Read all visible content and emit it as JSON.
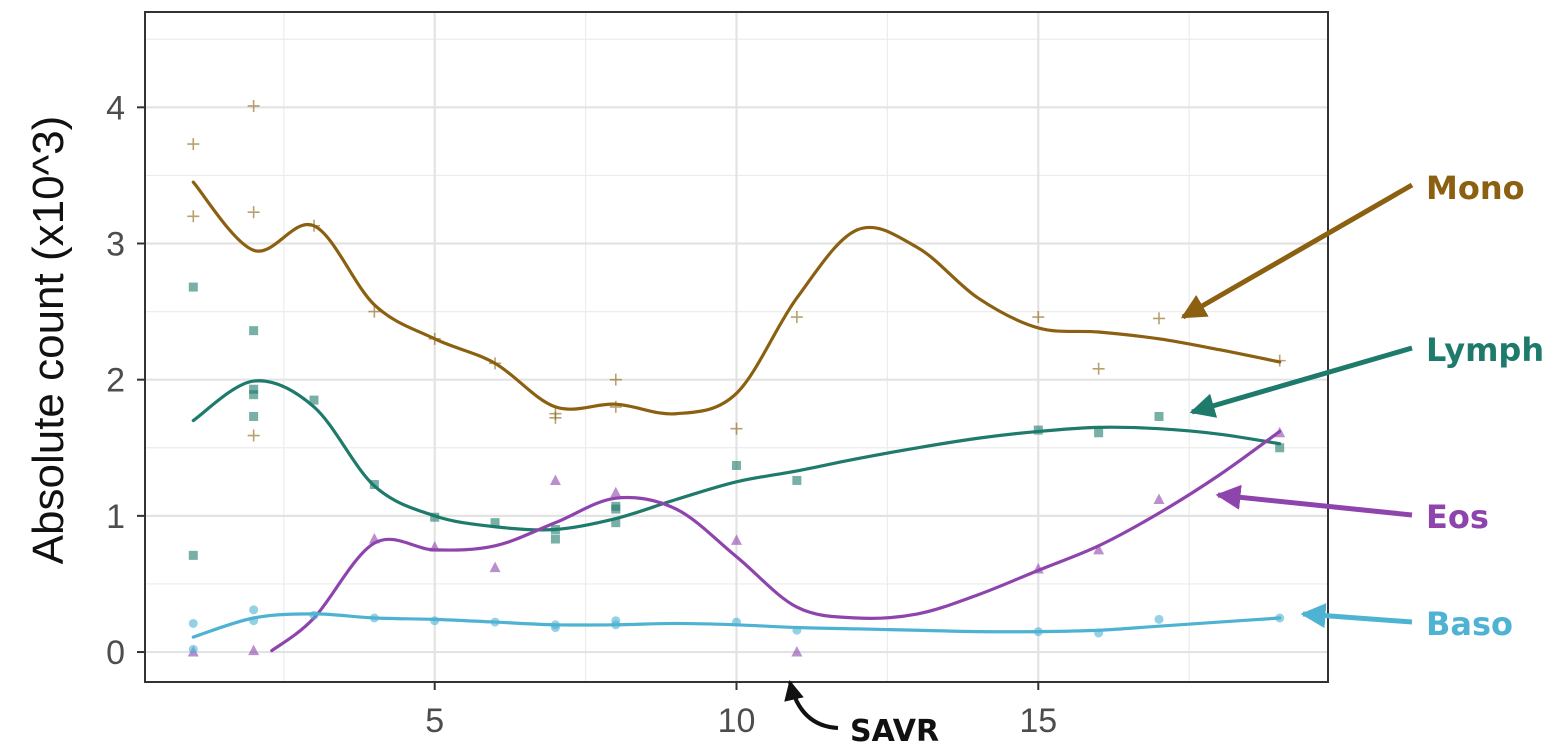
{
  "chart_data": {
    "type": "scatter",
    "title": "",
    "xlabel": "",
    "ylabel": "Absolute count (x10^3)",
    "xlim": [
      0.2,
      19.8
    ],
    "ylim": [
      -0.22,
      4.7
    ],
    "x_ticks": [
      5,
      10,
      15
    ],
    "y_ticks": [
      0,
      1,
      2,
      3,
      4
    ],
    "grid": true,
    "theme": "bw",
    "series": [
      {
        "name": "Mono",
        "color": "#8B6010",
        "marker": "cross",
        "points": [
          [
            1,
            3.73
          ],
          [
            1,
            3.2
          ],
          [
            2,
            4.01
          ],
          [
            2,
            3.23
          ],
          [
            2,
            1.59
          ],
          [
            3,
            3.13
          ],
          [
            4,
            2.5
          ],
          [
            5,
            2.3
          ],
          [
            6,
            2.12
          ],
          [
            7,
            1.72
          ],
          [
            7,
            1.75
          ],
          [
            8,
            2.0
          ],
          [
            8,
            1.8
          ],
          [
            10,
            1.64
          ],
          [
            11,
            2.46
          ],
          [
            15,
            2.46
          ],
          [
            16,
            2.08
          ],
          [
            17,
            2.45
          ],
          [
            19,
            2.14
          ]
        ],
        "smooth": [
          [
            1,
            3.45
          ],
          [
            2,
            2.95
          ],
          [
            3,
            3.13
          ],
          [
            4,
            2.55
          ],
          [
            5,
            2.3
          ],
          [
            6,
            2.12
          ],
          [
            7,
            1.8
          ],
          [
            8,
            1.82
          ],
          [
            9,
            1.75
          ],
          [
            10,
            1.9
          ],
          [
            11,
            2.6
          ],
          [
            12,
            3.1
          ],
          [
            13,
            2.97
          ],
          [
            14,
            2.6
          ],
          [
            15,
            2.38
          ],
          [
            16,
            2.35
          ],
          [
            17,
            2.3
          ],
          [
            18,
            2.22
          ],
          [
            19,
            2.13
          ]
        ]
      },
      {
        "name": "Lymph",
        "color": "#1E7A6A",
        "marker": "square",
        "points": [
          [
            1,
            2.68
          ],
          [
            1,
            0.71
          ],
          [
            2,
            2.36
          ],
          [
            2,
            1.93
          ],
          [
            2,
            1.89
          ],
          [
            2,
            1.73
          ],
          [
            3,
            1.85
          ],
          [
            4,
            1.23
          ],
          [
            5,
            0.99
          ],
          [
            6,
            0.95
          ],
          [
            7,
            0.9
          ],
          [
            7,
            0.83
          ],
          [
            8,
            1.07
          ],
          [
            8,
            1.05
          ],
          [
            8,
            0.95
          ],
          [
            10,
            1.37
          ],
          [
            11,
            1.26
          ],
          [
            15,
            1.63
          ],
          [
            16,
            1.61
          ],
          [
            17,
            1.73
          ],
          [
            19,
            1.5
          ]
        ],
        "smooth": [
          [
            1,
            1.7
          ],
          [
            2,
            1.99
          ],
          [
            3,
            1.8
          ],
          [
            4,
            1.22
          ],
          [
            5,
            1.0
          ],
          [
            6,
            0.92
          ],
          [
            7,
            0.9
          ],
          [
            8,
            0.98
          ],
          [
            9,
            1.12
          ],
          [
            10,
            1.25
          ],
          [
            11,
            1.33
          ],
          [
            12,
            1.42
          ],
          [
            13,
            1.5
          ],
          [
            14,
            1.57
          ],
          [
            15,
            1.62
          ],
          [
            16,
            1.65
          ],
          [
            17,
            1.64
          ],
          [
            18,
            1.6
          ],
          [
            19,
            1.53
          ]
        ]
      },
      {
        "name": "Eos",
        "color": "#8E44AD",
        "marker": "triangle",
        "points": [
          [
            1,
            0.0
          ],
          [
            2,
            0.01
          ],
          [
            4,
            0.83
          ],
          [
            5,
            0.77
          ],
          [
            6,
            0.62
          ],
          [
            7,
            1.26
          ],
          [
            8,
            1.17
          ],
          [
            10,
            0.82
          ],
          [
            11,
            0.0
          ],
          [
            15,
            0.61
          ],
          [
            16,
            0.75
          ],
          [
            17,
            1.12
          ],
          [
            19,
            1.61
          ]
        ],
        "smooth": [
          [
            2.3,
            0.01
          ],
          [
            3,
            0.25
          ],
          [
            4,
            0.8
          ],
          [
            5,
            0.75
          ],
          [
            6,
            0.78
          ],
          [
            7,
            0.95
          ],
          [
            8,
            1.13
          ],
          [
            9,
            1.05
          ],
          [
            10,
            0.7
          ],
          [
            11,
            0.33
          ],
          [
            12,
            0.25
          ],
          [
            13,
            0.28
          ],
          [
            14,
            0.42
          ],
          [
            15,
            0.6
          ],
          [
            16,
            0.78
          ],
          [
            17,
            1.02
          ],
          [
            18,
            1.3
          ],
          [
            19,
            1.62
          ]
        ]
      },
      {
        "name": "Baso",
        "color": "#4EB3D3",
        "marker": "circle",
        "points": [
          [
            1,
            0.21
          ],
          [
            1,
            0.02
          ],
          [
            2,
            0.31
          ],
          [
            2,
            0.23
          ],
          [
            3,
            0.27
          ],
          [
            4,
            0.25
          ],
          [
            5,
            0.23
          ],
          [
            6,
            0.22
          ],
          [
            7,
            0.18
          ],
          [
            7,
            0.2
          ],
          [
            8,
            0.23
          ],
          [
            8,
            0.2
          ],
          [
            10,
            0.22
          ],
          [
            11,
            0.16
          ],
          [
            15,
            0.15
          ],
          [
            16,
            0.14
          ],
          [
            17,
            0.24
          ],
          [
            19,
            0.25
          ]
        ],
        "smooth": [
          [
            1,
            0.11
          ],
          [
            2,
            0.25
          ],
          [
            3,
            0.28
          ],
          [
            4,
            0.25
          ],
          [
            5,
            0.24
          ],
          [
            6,
            0.22
          ],
          [
            7,
            0.2
          ],
          [
            8,
            0.2
          ],
          [
            9,
            0.21
          ],
          [
            10,
            0.2
          ],
          [
            11,
            0.18
          ],
          [
            12,
            0.17
          ],
          [
            13,
            0.16
          ],
          [
            14,
            0.15
          ],
          [
            15,
            0.15
          ],
          [
            16,
            0.16
          ],
          [
            17,
            0.19
          ],
          [
            18,
            0.22
          ],
          [
            19,
            0.25
          ]
        ]
      }
    ],
    "annotations": [
      {
        "text": "Mono",
        "series": "Mono",
        "color": "#8B6010"
      },
      {
        "text": "Lymph",
        "series": "Lymph",
        "color": "#1E7A6A"
      },
      {
        "text": "Eos",
        "series": "Eos",
        "color": "#8E44AD"
      },
      {
        "text": "Baso",
        "series": "Baso",
        "color": "#4EB3D3"
      },
      {
        "text": "SAVR",
        "x": 11,
        "color": "#111111"
      }
    ]
  }
}
